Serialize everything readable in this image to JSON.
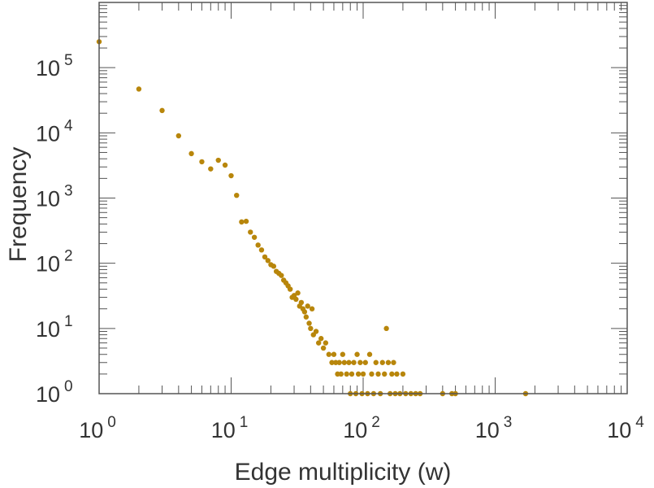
{
  "chart_data": {
    "type": "scatter",
    "title": "",
    "xlabel": "Edge multiplicity (w)",
    "ylabel": "Frequency",
    "xscale": "log",
    "yscale": "log",
    "xlim": [
      1,
      10000
    ],
    "ylim": [
      1,
      1000000
    ],
    "grid": false,
    "point_color": "#b8860b",
    "frame_color": "#555555",
    "x_ticks": [
      {
        "base": "10",
        "exp": "0",
        "value": 1
      },
      {
        "base": "10",
        "exp": "1",
        "value": 10
      },
      {
        "base": "10",
        "exp": "2",
        "value": 100
      },
      {
        "base": "10",
        "exp": "3",
        "value": 1000
      },
      {
        "base": "10",
        "exp": "4",
        "value": 10000
      }
    ],
    "y_ticks": [
      {
        "base": "10",
        "exp": "0",
        "value": 1
      },
      {
        "base": "10",
        "exp": "1",
        "value": 10
      },
      {
        "base": "10",
        "exp": "2",
        "value": 100
      },
      {
        "base": "10",
        "exp": "3",
        "value": 1000
      },
      {
        "base": "10",
        "exp": "4",
        "value": 10000
      },
      {
        "base": "10",
        "exp": "5",
        "value": 100000
      }
    ],
    "series": [
      {
        "name": "edge multiplicity",
        "points": [
          [
            1,
            250000
          ],
          [
            2,
            47000
          ],
          [
            3,
            22000
          ],
          [
            4,
            9000
          ],
          [
            5,
            4800
          ],
          [
            6,
            3600
          ],
          [
            7,
            2800
          ],
          [
            8,
            3800
          ],
          [
            9,
            3200
          ],
          [
            10,
            2200
          ],
          [
            11,
            1100
          ],
          [
            12,
            430
          ],
          [
            13,
            440
          ],
          [
            14,
            300
          ],
          [
            15,
            250
          ],
          [
            16,
            190
          ],
          [
            17,
            160
          ],
          [
            18,
            125
          ],
          [
            19,
            110
          ],
          [
            20,
            95
          ],
          [
            21,
            90
          ],
          [
            22,
            75
          ],
          [
            23,
            70
          ],
          [
            24,
            65
          ],
          [
            25,
            55
          ],
          [
            26,
            50
          ],
          [
            27,
            45
          ],
          [
            28,
            40
          ],
          [
            29,
            30
          ],
          [
            30,
            32
          ],
          [
            31,
            28
          ],
          [
            32,
            35
          ],
          [
            33,
            22
          ],
          [
            34,
            25
          ],
          [
            35,
            20
          ],
          [
            36,
            18
          ],
          [
            37,
            15
          ],
          [
            38,
            22
          ],
          [
            39,
            12
          ],
          [
            40,
            10
          ],
          [
            41,
            20
          ],
          [
            42,
            8
          ],
          [
            44,
            9
          ],
          [
            46,
            6
          ],
          [
            48,
            7
          ],
          [
            50,
            5
          ],
          [
            52,
            6
          ],
          [
            55,
            4
          ],
          [
            58,
            3
          ],
          [
            60,
            4
          ],
          [
            62,
            3
          ],
          [
            64,
            2
          ],
          [
            66,
            3
          ],
          [
            68,
            2
          ],
          [
            70,
            4
          ],
          [
            72,
            3
          ],
          [
            75,
            2
          ],
          [
            78,
            3
          ],
          [
            80,
            1
          ],
          [
            82,
            2
          ],
          [
            85,
            3
          ],
          [
            88,
            1
          ],
          [
            90,
            4
          ],
          [
            92,
            2
          ],
          [
            95,
            3
          ],
          [
            98,
            1
          ],
          [
            100,
            2
          ],
          [
            104,
            3
          ],
          [
            108,
            1
          ],
          [
            112,
            4
          ],
          [
            116,
            2
          ],
          [
            120,
            1
          ],
          [
            125,
            3
          ],
          [
            130,
            2
          ],
          [
            135,
            1
          ],
          [
            140,
            3
          ],
          [
            145,
            2
          ],
          [
            150,
            10
          ],
          [
            155,
            3
          ],
          [
            160,
            1
          ],
          [
            165,
            2
          ],
          [
            170,
            3
          ],
          [
            175,
            1
          ],
          [
            180,
            2
          ],
          [
            190,
            1
          ],
          [
            200,
            2
          ],
          [
            210,
            1
          ],
          [
            230,
            1
          ],
          [
            250,
            1
          ],
          [
            270,
            1
          ],
          [
            400,
            1
          ],
          [
            470,
            1
          ],
          [
            500,
            1
          ],
          [
            1700,
            1
          ]
        ]
      }
    ]
  }
}
